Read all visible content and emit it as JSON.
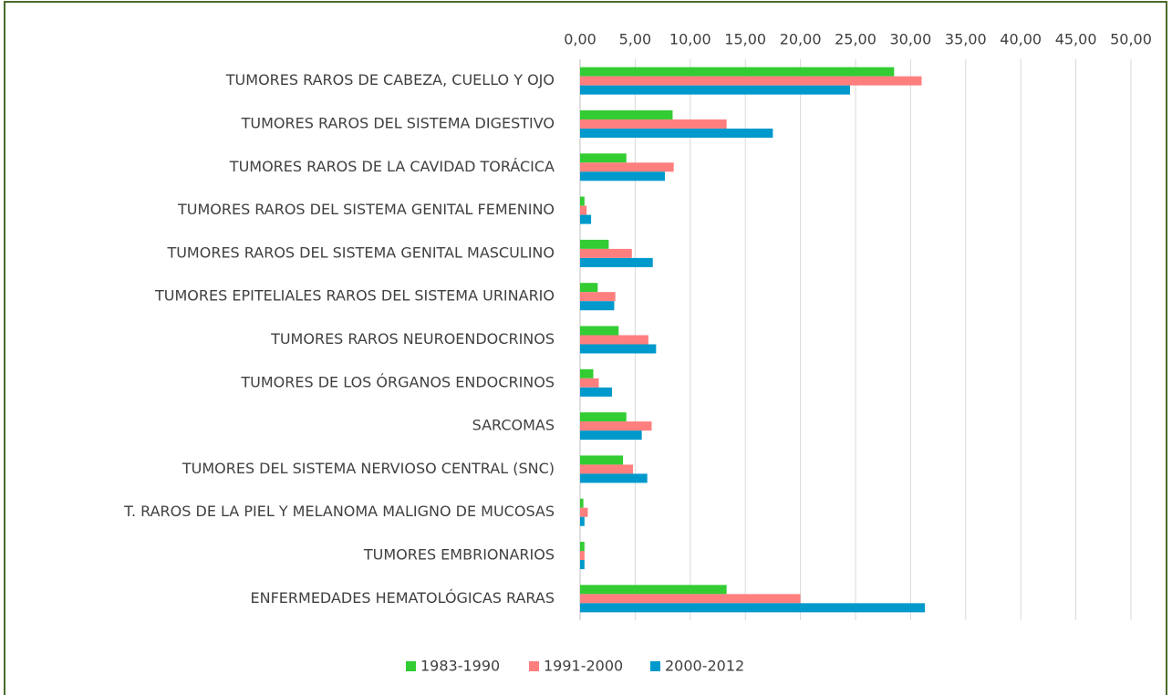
{
  "chart_data": {
    "type": "bar",
    "orientation": "horizontal",
    "categories": [
      "TUMORES RAROS DE CABEZA, CUELLO Y OJO",
      "TUMORES  RAROS DEL SISTEMA DIGESTIVO",
      "TUMORES  RAROS DE LA CAVIDAD TORÁCICA",
      "TUMORES RAROS DEL SISTEMA GENITAL FEMENINO",
      "TUMORES RAROS DEL SISTEMA GENITAL MASCULINO",
      "TUMORES EPITELIALES RAROS DEL SISTEMA URINARIO",
      "TUMORES RAROS NEUROENDOCRINOS",
      "TUMORES DE LOS ÓRGANOS ENDOCRINOS",
      "SARCOMAS",
      "TUMORES DEL SISTEMA NERVIOSO CENTRAL (SNC)",
      "T. RAROS DE LA PIEL Y MELANOMA MALIGNO DE MUCOSAS",
      "TUMORES EMBRIONARIOS",
      "ENFERMEDADES HEMATOLÓGICAS RARAS"
    ],
    "series": [
      {
        "name": "1983-1990",
        "color": "#33cc33",
        "values": [
          28.5,
          8.4,
          4.2,
          0.4,
          2.6,
          1.6,
          3.5,
          1.2,
          4.2,
          3.9,
          0.3,
          0.4,
          13.3
        ]
      },
      {
        "name": "1991-2000",
        "color": "#ff7f7f",
        "values": [
          31.0,
          13.3,
          8.5,
          0.6,
          4.7,
          3.2,
          6.2,
          1.7,
          6.5,
          4.8,
          0.7,
          0.4,
          20.0
        ]
      },
      {
        "name": "2000-2012",
        "color": "#0099cc",
        "values": [
          24.5,
          17.5,
          7.7,
          1.0,
          6.6,
          3.1,
          6.9,
          2.9,
          5.6,
          6.1,
          0.4,
          0.4,
          31.3
        ]
      }
    ],
    "xlim": [
      0,
      50
    ],
    "xticks": [
      {
        "value": 0,
        "label": "0,00"
      },
      {
        "value": 5,
        "label": "5,00"
      },
      {
        "value": 10,
        "label": "10,00"
      },
      {
        "value": 15,
        "label": "15,00"
      },
      {
        "value": 20,
        "label": "20,00"
      },
      {
        "value": 25,
        "label": "25,00"
      },
      {
        "value": 30,
        "label": "30,00"
      },
      {
        "value": 35,
        "label": "35,00"
      },
      {
        "value": 40,
        "label": "40,00"
      },
      {
        "value": 45,
        "label": "45,00"
      },
      {
        "value": 50,
        "label": "50,00"
      }
    ],
    "grid": true,
    "legend": "bottom"
  }
}
